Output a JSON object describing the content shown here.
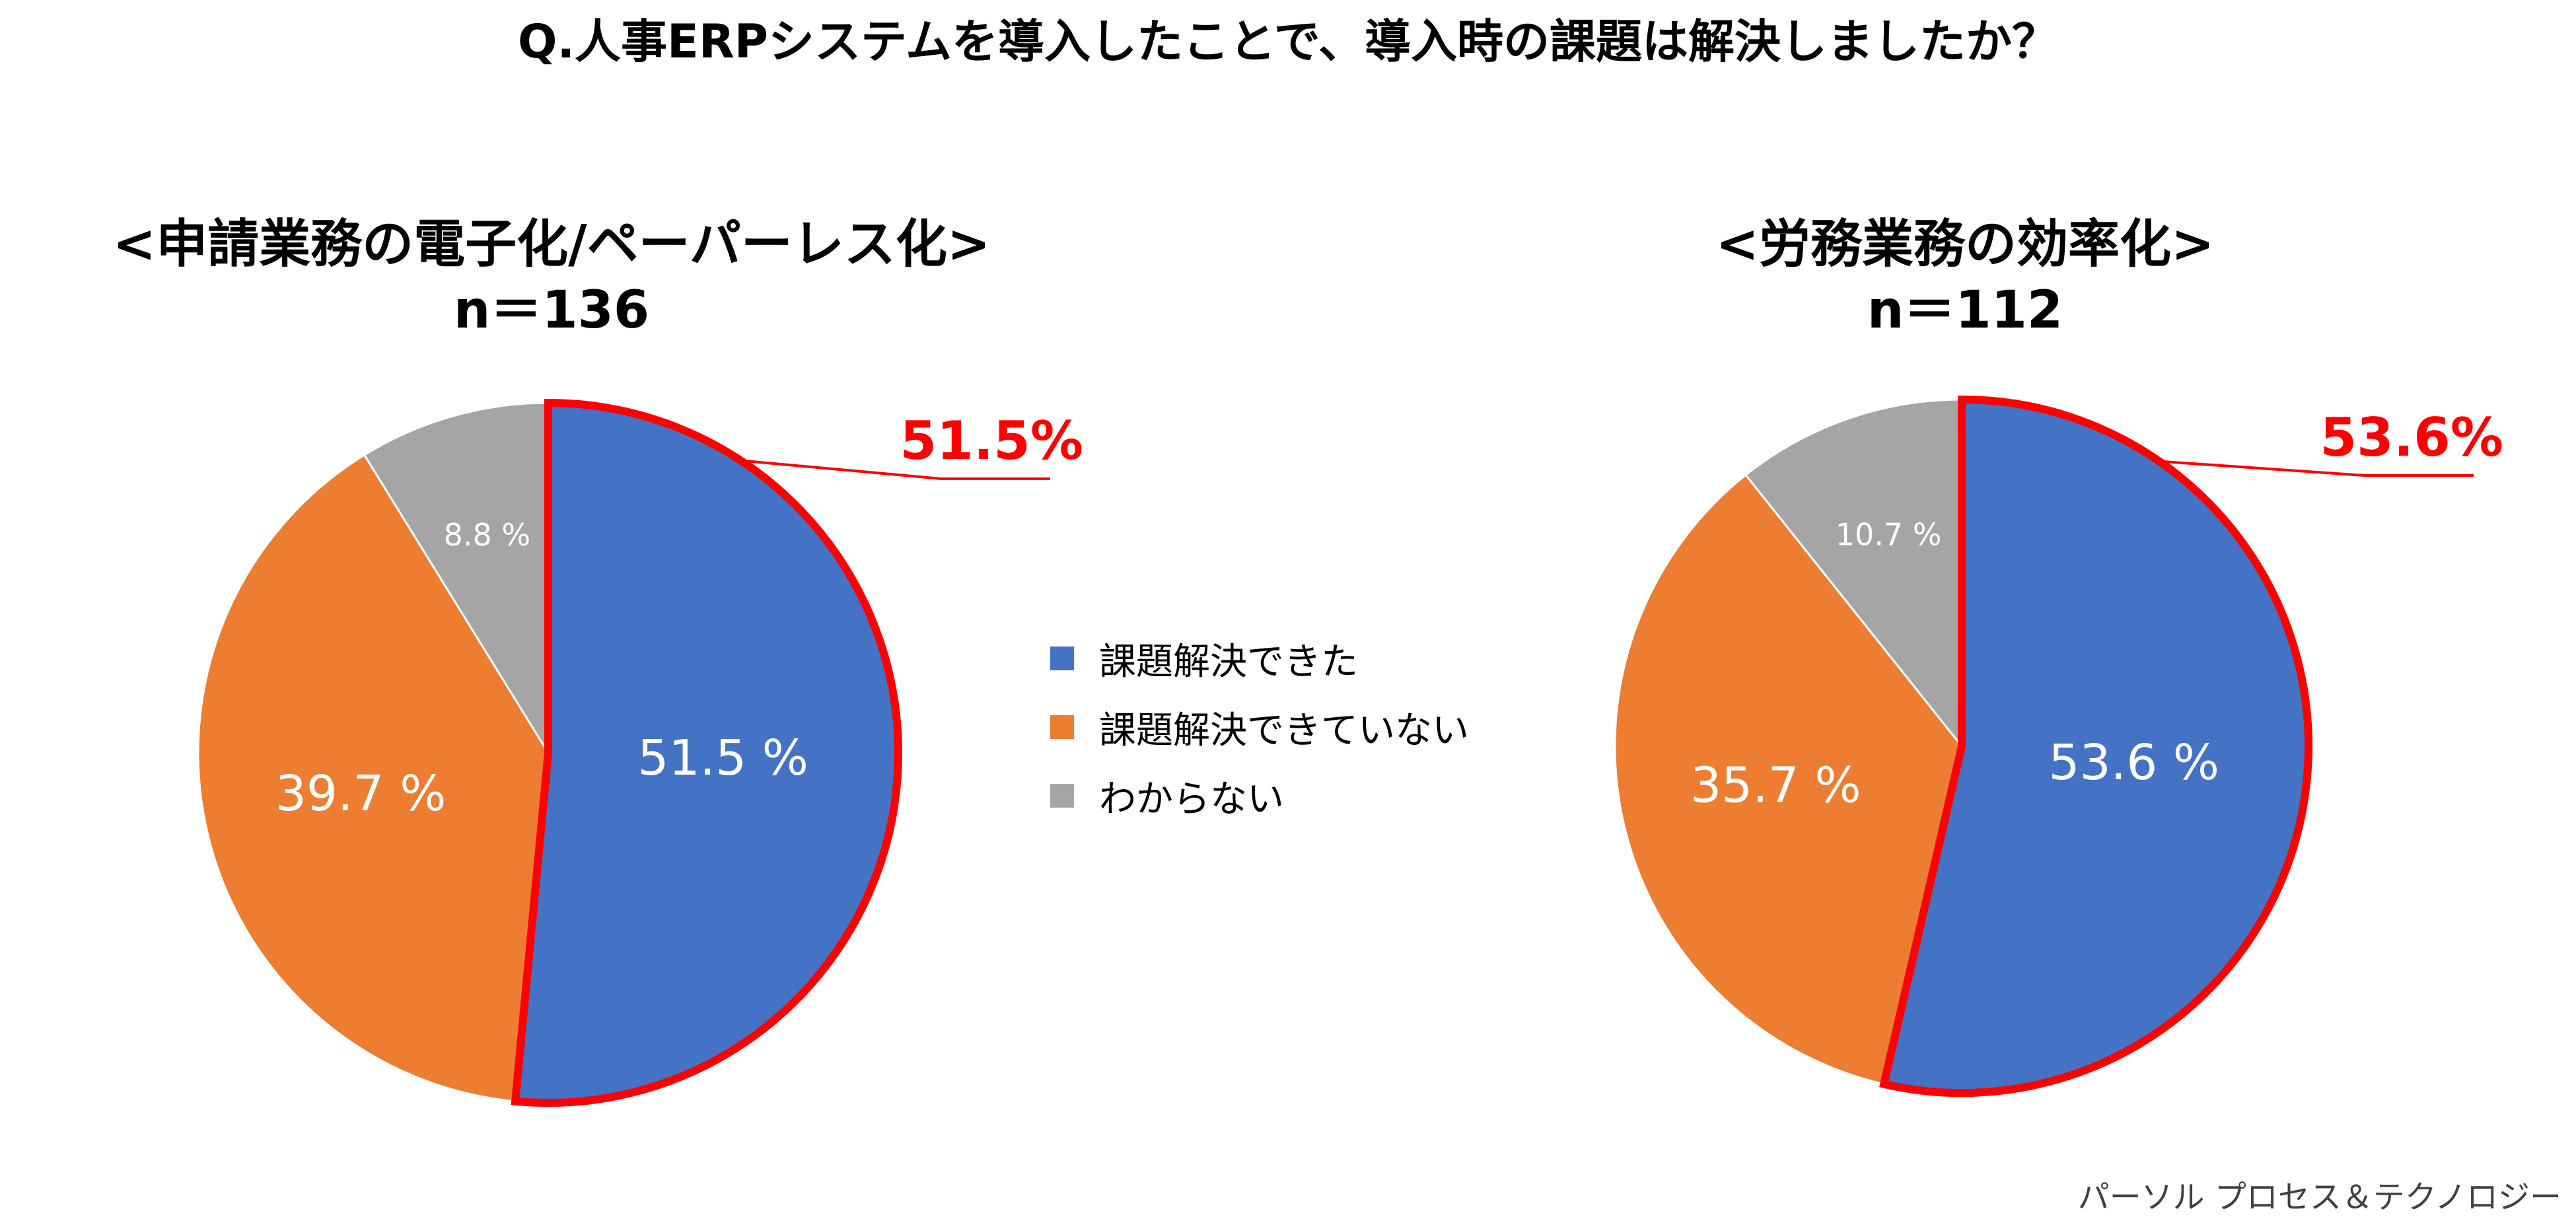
{
  "title": "Q.人事ERPシステムを導入したことで、導入時の課題は解決しましたか？",
  "legend": [
    {
      "label": "課題解決できた",
      "color": "#4472c4"
    },
    {
      "label": "課題解決できていない",
      "color": "#ed7d31"
    },
    {
      "label": "わからない",
      "color": "#a5a5a5"
    }
  ],
  "highlight_color": "#ff0000",
  "chart_data": [
    {
      "type": "pie",
      "title": "<申請業務の電子化/ペーパーレス化>",
      "subtitle": "n＝136",
      "categories": [
        "課題解決できた",
        "課題解決できていない",
        "わからない"
      ],
      "values": [
        51.5,
        39.7,
        8.8
      ],
      "labels": [
        "51.5 %",
        "39.7 %",
        "8.8 %"
      ],
      "highlight": "51.5%",
      "legend_position": "center"
    },
    {
      "type": "pie",
      "title": "<労務業務の効率化>",
      "subtitle": "n＝112",
      "categories": [
        "課題解決できた",
        "課題解決できていない",
        "わからない"
      ],
      "values": [
        53.6,
        35.7,
        10.7
      ],
      "labels": [
        "53.6 %",
        "35.7 %",
        "10.7 %"
      ],
      "highlight": "53.6%",
      "legend_position": "center"
    }
  ],
  "credit": "パーソル プロセス＆テクノロジー"
}
